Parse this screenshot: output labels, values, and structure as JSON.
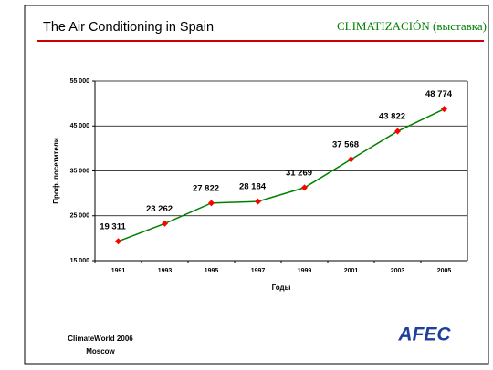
{
  "header": {
    "title": "The Air Conditioning in Spain",
    "subtitle": "CLIMATIZACIÓN (выставка)"
  },
  "chart_data": {
    "type": "line",
    "categories": [
      "1991",
      "1993",
      "1995",
      "1997",
      "1999",
      "2001",
      "2003",
      "2005"
    ],
    "values": [
      19311,
      23262,
      27822,
      28184,
      31269,
      37568,
      43822,
      48774
    ],
    "value_labels": [
      "19 311",
      "23 262",
      "27 822",
      "28 184",
      "31 269",
      "37 568",
      "43 822",
      "48 774"
    ],
    "color": "#008000",
    "marker_color": "#ff0000",
    "x_label": "Годы",
    "y_label": "Проф. посетители",
    "ylim": [
      15000,
      55000
    ],
    "yticks": [
      {
        "value": 15000,
        "label": "15 000"
      },
      {
        "value": 25000,
        "label": "25 000"
      },
      {
        "value": 35000,
        "label": "35 000"
      },
      {
        "value": 45000,
        "label": "45 000"
      },
      {
        "value": 55000,
        "label": "55 000"
      }
    ],
    "grid": true
  },
  "footer": {
    "lines": [
      "ClimateWorld 2006",
      "Moscow"
    ],
    "logo": "AFEC"
  }
}
